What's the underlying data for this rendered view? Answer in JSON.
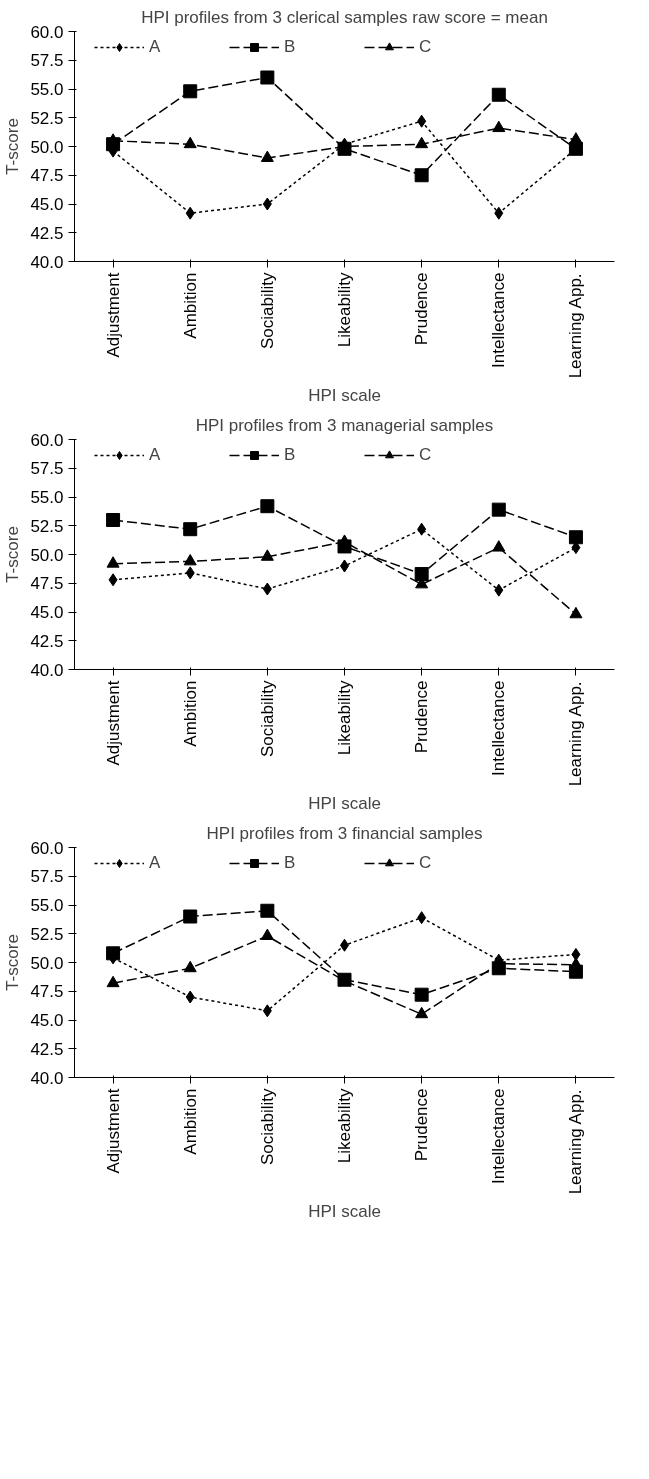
{
  "chart_data": [
    {
      "type": "line",
      "title": "HPI profiles from 3 clerical samples raw score = mean",
      "xlabel": "HPI scale",
      "ylabel": "T-score",
      "categories": [
        "Adjustment",
        "Ambition",
        "Sociability",
        "Likeability",
        "Prudence",
        "Intellectance",
        "Learning App."
      ],
      "ylim": [
        40,
        60
      ],
      "yticks": [
        {
          "value": 40,
          "label": "40.0"
        },
        {
          "value": 42.5,
          "label": "42.5"
        },
        {
          "value": 45,
          "label": "45.0"
        },
        {
          "value": 47.5,
          "label": "47.5"
        },
        {
          "value": 50,
          "label": "50.0"
        },
        {
          "value": 52.5,
          "label": "52.5"
        },
        {
          "value": 55,
          "label": "55.0"
        },
        {
          "value": 57.5,
          "label": "57.5"
        },
        {
          "value": 60,
          "label": "60.0"
        }
      ],
      "grid": false,
      "legend": "top",
      "series": [
        {
          "name": "A",
          "color": "#000000",
          "marker": "diamond",
          "line_style": "dotted",
          "values": [
            49.6,
            44.2,
            45.0,
            50.2,
            52.2,
            44.2,
            49.8
          ]
        },
        {
          "name": "B",
          "color": "#000000",
          "marker": "square",
          "line_style": "dashed",
          "values": [
            50.2,
            54.8,
            56.0,
            49.8,
            47.5,
            54.5,
            49.8
          ]
        },
        {
          "name": "C",
          "color": "#000000",
          "marker": "triangle",
          "line_style": "dashed",
          "values": [
            50.5,
            50.2,
            49.0,
            50.0,
            50.2,
            51.6,
            50.6
          ]
        }
      ]
    },
    {
      "type": "line",
      "title": "HPI profiles from 3 managerial samples",
      "xlabel": "HPI scale",
      "ylabel": "T-score",
      "categories": [
        "Adjustment",
        "Ambition",
        "Sociability",
        "Likeability",
        "Prudence",
        "Intellectance",
        "Learning App."
      ],
      "ylim": [
        40,
        60
      ],
      "yticks": [
        {
          "value": 40,
          "label": "40.0"
        },
        {
          "value": 42.5,
          "label": "42.5"
        },
        {
          "value": 45,
          "label": "45.0"
        },
        {
          "value": 47.5,
          "label": "47.5"
        },
        {
          "value": 50,
          "label": "50.0"
        },
        {
          "value": 52.5,
          "label": "52.5"
        },
        {
          "value": 55,
          "label": "55.0"
        },
        {
          "value": 57.5,
          "label": "57.5"
        },
        {
          "value": 60,
          "label": "60.0"
        }
      ],
      "grid": false,
      "legend": "top",
      "series": [
        {
          "name": "A",
          "color": "#000000",
          "marker": "diamond",
          "line_style": "dotted",
          "values": [
            47.8,
            48.4,
            47.0,
            49.0,
            52.2,
            46.9,
            50.6
          ]
        },
        {
          "name": "B",
          "color": "#000000",
          "marker": "square",
          "line_style": "dashed",
          "values": [
            53.0,
            52.2,
            54.2,
            50.7,
            48.3,
            53.9,
            51.5
          ]
        },
        {
          "name": "C",
          "color": "#000000",
          "marker": "triangle",
          "line_style": "dashed",
          "values": [
            49.2,
            49.4,
            49.8,
            51.1,
            47.4,
            50.6,
            44.8
          ]
        }
      ]
    },
    {
      "type": "line",
      "title": "HPI profiles from 3 financial samples",
      "xlabel": "HPI scale",
      "ylabel": "T-score",
      "categories": [
        "Adjustment",
        "Ambition",
        "Sociability",
        "Likeability",
        "Prudence",
        "Intellectance",
        "Learning App."
      ],
      "ylim": [
        40,
        60
      ],
      "yticks": [
        {
          "value": 40,
          "label": "40.0"
        },
        {
          "value": 42.5,
          "label": "42.5"
        },
        {
          "value": 45,
          "label": "45.0"
        },
        {
          "value": 47.5,
          "label": "47.5"
        },
        {
          "value": 50,
          "label": "50.0"
        },
        {
          "value": 52.5,
          "label": "52.5"
        },
        {
          "value": 55,
          "label": "55.0"
        },
        {
          "value": 57.5,
          "label": "57.5"
        },
        {
          "value": 60,
          "label": "60.0"
        }
      ],
      "grid": false,
      "legend": "top",
      "series": [
        {
          "name": "A",
          "color": "#000000",
          "marker": "diamond",
          "line_style": "dotted",
          "values": [
            50.4,
            47.0,
            45.8,
            51.5,
            53.9,
            50.2,
            50.7
          ]
        },
        {
          "name": "B",
          "color": "#000000",
          "marker": "square",
          "line_style": "dashed",
          "values": [
            50.8,
            54.0,
            54.5,
            48.5,
            47.2,
            49.5,
            49.2
          ]
        },
        {
          "name": "C",
          "color": "#000000",
          "marker": "triangle",
          "line_style": "dashed",
          "values": [
            48.2,
            49.5,
            52.3,
            48.4,
            45.5,
            49.9,
            49.8
          ]
        }
      ]
    }
  ]
}
